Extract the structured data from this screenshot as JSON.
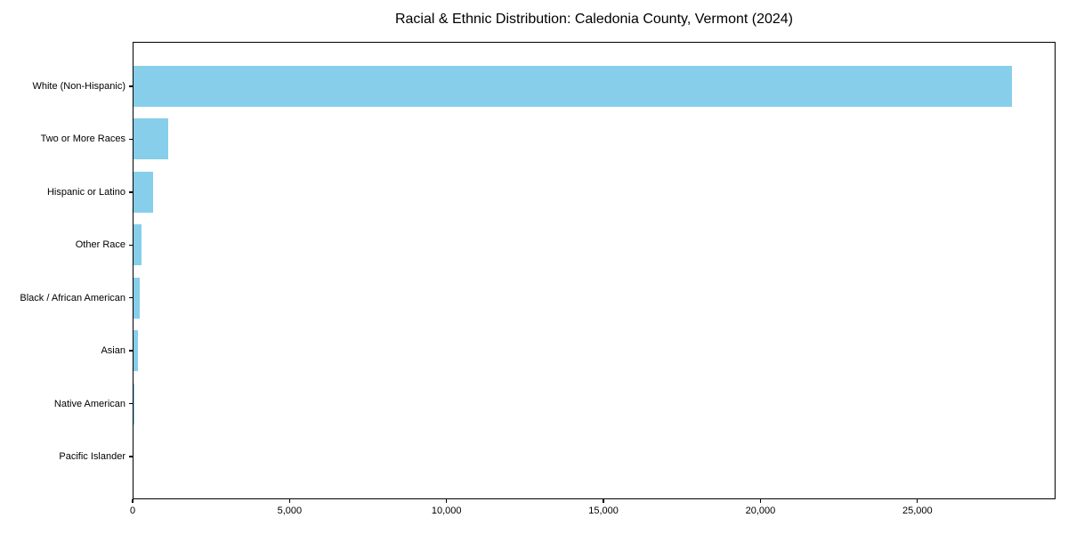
{
  "page": {
    "background_color": "#ffffff"
  },
  "chart_data": {
    "type": "bar",
    "orientation": "horizontal",
    "title": "Racial & Ethnic Distribution: Caledonia County, Vermont (2024)",
    "categories": [
      "White (Non-Hispanic)",
      "Two or More Races",
      "Hispanic or Latino",
      "Other Race",
      "Black / African American",
      "Asian",
      "Native American",
      "Pacific Islander"
    ],
    "values": [
      28000,
      1140,
      640,
      285,
      230,
      160,
      55,
      10
    ],
    "xlabel": "",
    "ylabel": "",
    "xlim": [
      0,
      29400
    ],
    "x_ticks": [
      0,
      5000,
      10000,
      15000,
      20000,
      25000
    ],
    "x_tick_labels": [
      "0",
      "5,000",
      "10,000",
      "15,000",
      "20,000",
      "25,000"
    ],
    "bar_color": "#87CEEB",
    "axis_color": "#000000",
    "text_color": "#000000",
    "grid": false,
    "legend": "none"
  }
}
